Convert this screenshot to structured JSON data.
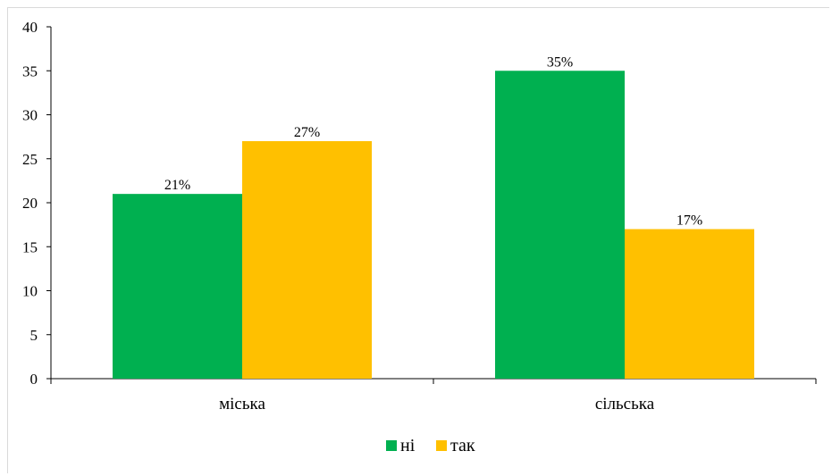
{
  "chart_data": {
    "type": "bar",
    "categories": [
      "міська",
      "сільська"
    ],
    "series": [
      {
        "name": "ні",
        "values": [
          21,
          35
        ],
        "labels": [
          "21%",
          "35%"
        ],
        "color": "#00b050"
      },
      {
        "name": "так",
        "values": [
          27,
          17
        ],
        "labels": [
          "27%",
          "17%"
        ],
        "color": "#ffc000"
      }
    ],
    "ylim": [
      0,
      40
    ],
    "yticks": [
      0,
      5,
      10,
      15,
      20,
      25,
      30,
      35,
      40
    ],
    "grid": false,
    "legend": "bottom"
  }
}
